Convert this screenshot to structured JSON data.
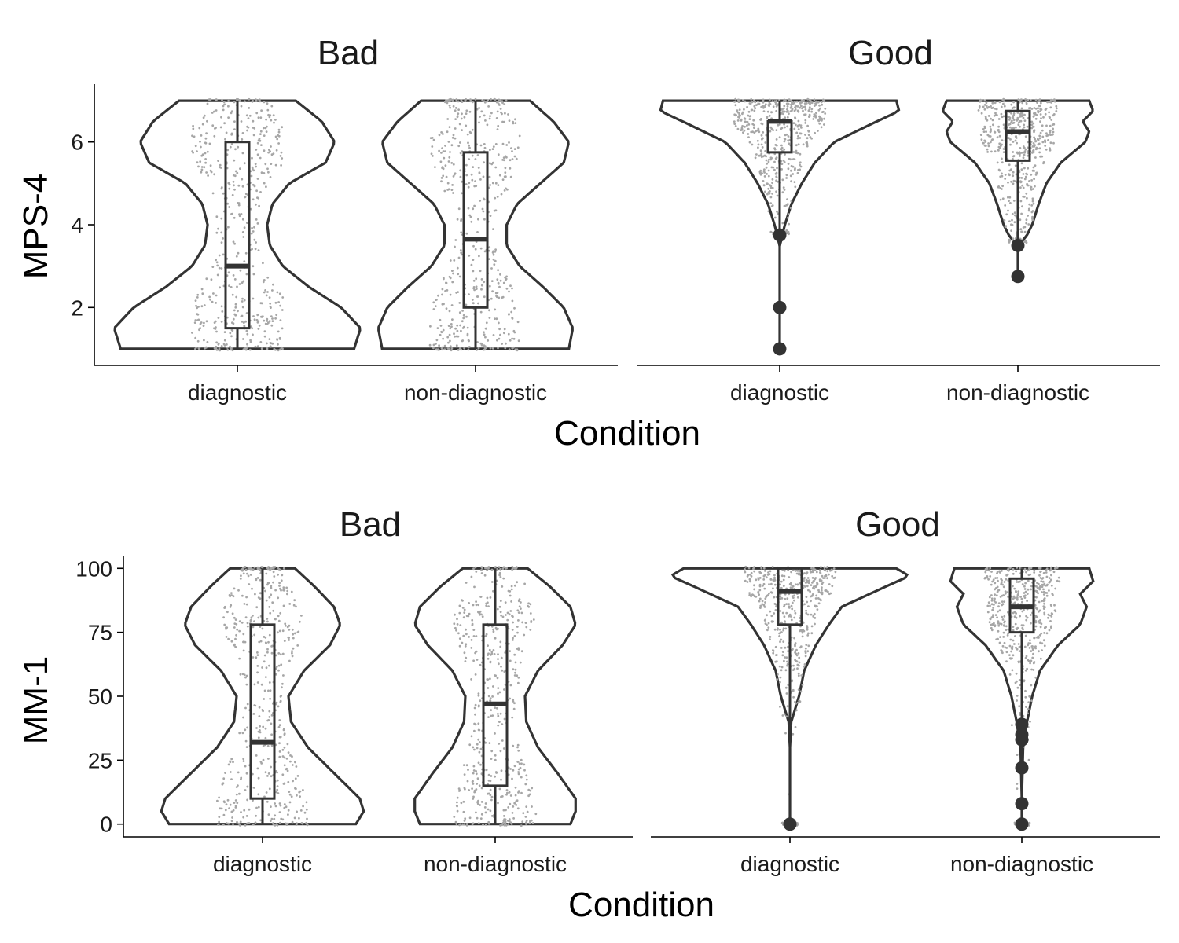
{
  "chart_data": [
    {
      "type": "violin",
      "ylabel": "MPS-4",
      "xlabel": "Condition",
      "ylim": [
        0.6,
        7.4
      ],
      "yticks": [
        2,
        4,
        6
      ],
      "categories": [
        "diagnostic",
        "non-diagnostic"
      ],
      "facets": [
        {
          "title": "Bad",
          "groups": [
            {
              "category": "diagnostic",
              "min": 1,
              "q1": 1.5,
              "median": 3.0,
              "q3": 6.0,
              "max": 7,
              "outliers": [],
              "density": [
                [
                  1.0,
                  0.9
                ],
                [
                  1.5,
                  0.95
                ],
                [
                  2.0,
                  0.8
                ],
                [
                  2.5,
                  0.55
                ],
                [
                  3.0,
                  0.35
                ],
                [
                  3.5,
                  0.25
                ],
                [
                  4.0,
                  0.23
                ],
                [
                  4.5,
                  0.27
                ],
                [
                  5.0,
                  0.4
                ],
                [
                  5.5,
                  0.68
                ],
                [
                  6.0,
                  0.75
                ],
                [
                  6.5,
                  0.65
                ],
                [
                  7.0,
                  0.45
                ]
              ]
            },
            {
              "category": "non-diagnostic",
              "min": 1,
              "q1": 2.0,
              "median": 3.65,
              "q3": 5.75,
              "max": 7,
              "outliers": [],
              "density": [
                [
                  1.0,
                  0.72
                ],
                [
                  1.5,
                  0.75
                ],
                [
                  2.0,
                  0.68
                ],
                [
                  2.5,
                  0.52
                ],
                [
                  3.0,
                  0.34
                ],
                [
                  3.5,
                  0.24
                ],
                [
                  4.0,
                  0.24
                ],
                [
                  4.5,
                  0.32
                ],
                [
                  5.0,
                  0.5
                ],
                [
                  5.5,
                  0.68
                ],
                [
                  6.0,
                  0.72
                ],
                [
                  6.5,
                  0.6
                ],
                [
                  7.0,
                  0.42
                ]
              ]
            }
          ]
        },
        {
          "title": "Good",
          "groups": [
            {
              "category": "diagnostic",
              "min": 3.8,
              "q1": 5.75,
              "median": 6.5,
              "q3": 6.5,
              "max": 7,
              "outliers": [
                3.75,
                2.0,
                1.0
              ],
              "density": [
                [
                  1.0,
                  0.0
                ],
                [
                  3.5,
                  0.0
                ],
                [
                  3.6,
                  0.01
                ],
                [
                  3.75,
                  0.02
                ],
                [
                  4.0,
                  0.04
                ],
                [
                  4.5,
                  0.09
                ],
                [
                  5.0,
                  0.17
                ],
                [
                  5.5,
                  0.27
                ],
                [
                  6.0,
                  0.42
                ],
                [
                  6.5,
                  0.75
                ],
                [
                  6.75,
                  0.92
                ],
                [
                  7.0,
                  0.9
                ]
              ]
            },
            {
              "category": "non-diagnostic",
              "min": 3.6,
              "q1": 5.55,
              "median": 6.25,
              "q3": 6.75,
              "max": 7,
              "outliers": [
                3.5,
                2.75
              ],
              "density": [
                [
                  2.75,
                  0.0
                ],
                [
                  3.5,
                  0.0
                ],
                [
                  3.55,
                  0.02
                ],
                [
                  3.75,
                  0.07
                ],
                [
                  4.0,
                  0.11
                ],
                [
                  4.5,
                  0.16
                ],
                [
                  5.0,
                  0.22
                ],
                [
                  5.5,
                  0.33
                ],
                [
                  6.0,
                  0.52
                ],
                [
                  6.25,
                  0.55
                ],
                [
                  6.5,
                  0.5
                ],
                [
                  6.75,
                  0.58
                ],
                [
                  7.0,
                  0.55
                ]
              ]
            }
          ]
        }
      ]
    },
    {
      "type": "violin",
      "ylabel": "MM-1",
      "xlabel": "Condition",
      "ylim": [
        -5,
        105
      ],
      "yticks": [
        0,
        25,
        50,
        75,
        100
      ],
      "categories": [
        "diagnostic",
        "non-diagnostic"
      ],
      "facets": [
        {
          "title": "Bad",
          "groups": [
            {
              "category": "diagnostic",
              "min": 0,
              "q1": 10,
              "median": 32,
              "q3": 78,
              "max": 100,
              "outliers": [],
              "density": [
                [
                  0,
                  0.72
                ],
                [
                  5,
                  0.78
                ],
                [
                  10,
                  0.75
                ],
                [
                  20,
                  0.55
                ],
                [
                  30,
                  0.35
                ],
                [
                  40,
                  0.22
                ],
                [
                  50,
                  0.2
                ],
                [
                  60,
                  0.32
                ],
                [
                  70,
                  0.52
                ],
                [
                  78,
                  0.6
                ],
                [
                  85,
                  0.55
                ],
                [
                  93,
                  0.4
                ],
                [
                  100,
                  0.25
                ]
              ]
            },
            {
              "category": "non-diagnostic",
              "min": 0,
              "q1": 15,
              "median": 47,
              "q3": 78,
              "max": 100,
              "outliers": [],
              "density": [
                [
                  0,
                  0.58
                ],
                [
                  5,
                  0.62
                ],
                [
                  10,
                  0.62
                ],
                [
                  20,
                  0.48
                ],
                [
                  30,
                  0.33
                ],
                [
                  40,
                  0.24
                ],
                [
                  50,
                  0.23
                ],
                [
                  60,
                  0.33
                ],
                [
                  70,
                  0.52
                ],
                [
                  78,
                  0.62
                ],
                [
                  85,
                  0.58
                ],
                [
                  93,
                  0.42
                ],
                [
                  100,
                  0.25
                ]
              ]
            }
          ]
        },
        {
          "title": "Good",
          "groups": [
            {
              "category": "diagnostic",
              "min": 0,
              "q1": 78,
              "median": 91,
              "q3": 100,
              "max": 100,
              "outliers": [
                0
              ],
              "density": [
                [
                  0,
                  0.0
                ],
                [
                  10,
                  0.0
                ],
                [
                  30,
                  0.0
                ],
                [
                  40,
                  0.01
                ],
                [
                  45,
                  0.04
                ],
                [
                  50,
                  0.07
                ],
                [
                  60,
                  0.11
                ],
                [
                  70,
                  0.2
                ],
                [
                  78,
                  0.3
                ],
                [
                  85,
                  0.4
                ],
                [
                  92,
                  0.7
                ],
                [
                  97,
                  0.92
                ],
                [
                  100,
                  0.82
                ]
              ]
            },
            {
              "category": "non-diagnostic",
              "min": 0,
              "q1": 75,
              "median": 85,
              "q3": 96,
              "max": 100,
              "outliers": [
                39,
                35,
                33,
                22,
                8,
                0
              ],
              "density": [
                [
                  0,
                  0.0
                ],
                [
                  10,
                  0.0
                ],
                [
                  30,
                  0.01
                ],
                [
                  40,
                  0.04
                ],
                [
                  50,
                  0.08
                ],
                [
                  60,
                  0.14
                ],
                [
                  70,
                  0.28
                ],
                [
                  78,
                  0.45
                ],
                [
                  85,
                  0.5
                ],
                [
                  90,
                  0.45
                ],
                [
                  95,
                  0.55
                ],
                [
                  100,
                  0.52
                ]
              ]
            }
          ]
        }
      ]
    }
  ]
}
